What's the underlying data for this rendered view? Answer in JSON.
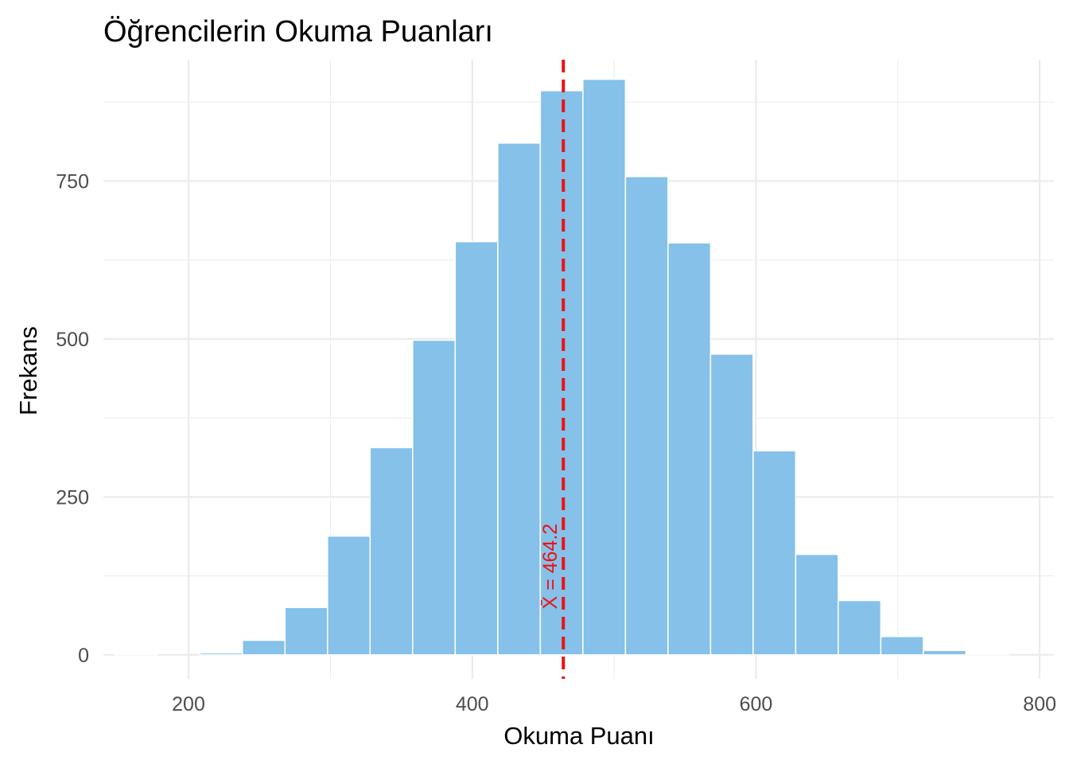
{
  "chart_data": {
    "type": "bar",
    "title": "Öğrencilerin Okuma Puanları",
    "xlabel": "Okuma Puanı",
    "ylabel": "Frekans",
    "xlim": [
      140,
      810
    ],
    "ylim": [
      -38,
      942
    ],
    "x_ticks": [
      200,
      400,
      600,
      800
    ],
    "y_ticks": [
      0,
      250,
      500,
      750
    ],
    "x_minor_grid": [
      300,
      500,
      700
    ],
    "y_minor_grid": [
      125,
      375,
      625,
      875
    ],
    "bin_width": 30,
    "bins": [
      {
        "start": 148,
        "end": 178,
        "count": 1
      },
      {
        "start": 178,
        "end": 208,
        "count": 0
      },
      {
        "start": 208,
        "end": 238,
        "count": 3
      },
      {
        "start": 238,
        "end": 268,
        "count": 23
      },
      {
        "start": 268,
        "end": 298,
        "count": 75
      },
      {
        "start": 298,
        "end": 328,
        "count": 188
      },
      {
        "start": 328,
        "end": 358,
        "count": 328
      },
      {
        "start": 358,
        "end": 388,
        "count": 498
      },
      {
        "start": 388,
        "end": 418,
        "count": 654
      },
      {
        "start": 418,
        "end": 448,
        "count": 810
      },
      {
        "start": 448,
        "end": 478,
        "count": 893
      },
      {
        "start": 478,
        "end": 508,
        "count": 911
      },
      {
        "start": 508,
        "end": 538,
        "count": 757
      },
      {
        "start": 538,
        "end": 568,
        "count": 652
      },
      {
        "start": 568,
        "end": 598,
        "count": 476
      },
      {
        "start": 598,
        "end": 628,
        "count": 323
      },
      {
        "start": 628,
        "end": 658,
        "count": 159
      },
      {
        "start": 658,
        "end": 688,
        "count": 86
      },
      {
        "start": 688,
        "end": 718,
        "count": 29
      },
      {
        "start": 718,
        "end": 748,
        "count": 7
      },
      {
        "start": 748,
        "end": 778,
        "count": 2
      },
      {
        "start": 778,
        "end": 808,
        "count": 0
      }
    ],
    "mean_line": {
      "value": 464.2,
      "label": "X̄ = 464.2",
      "label_y": 140
    },
    "grid": true,
    "legend": "none",
    "colors": {
      "bar": "#85c1e9",
      "bar_edge": "#ffffff",
      "mean_line": "#ee1111",
      "grid": "#ebebeb",
      "tick_text": "#4d4d4d",
      "title": "#000000"
    }
  }
}
